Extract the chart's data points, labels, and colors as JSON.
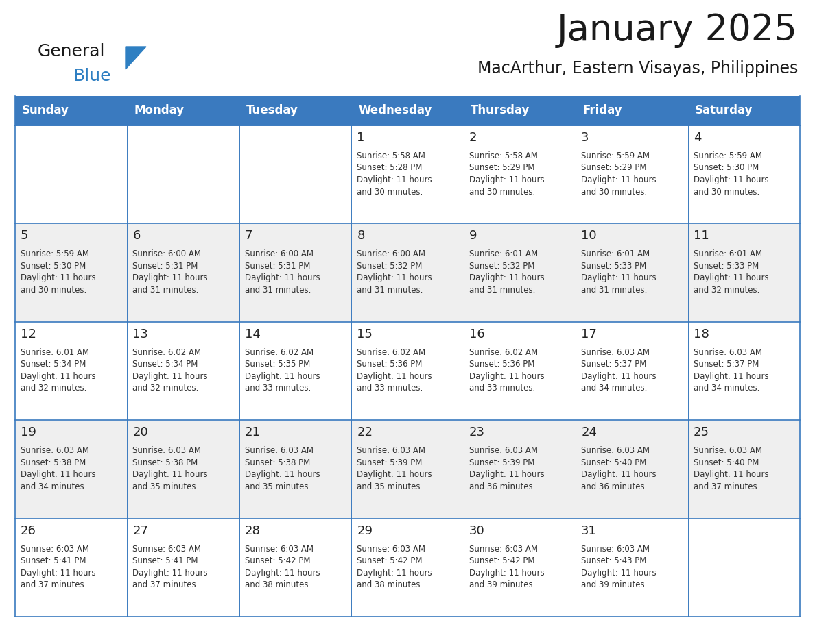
{
  "title": "January 2025",
  "subtitle": "MacArthur, Eastern Visayas, Philippines",
  "header_color": "#3a7abf",
  "header_text_color": "#ffffff",
  "odd_row_bg": "#efefef",
  "even_row_bg": "#ffffff",
  "border_color": "#3a7abf",
  "text_color": "#333333",
  "day_num_color": "#222222",
  "days_of_week": [
    "Sunday",
    "Monday",
    "Tuesday",
    "Wednesday",
    "Thursday",
    "Friday",
    "Saturday"
  ],
  "calendar_data": [
    [
      {
        "day": "",
        "info": ""
      },
      {
        "day": "",
        "info": ""
      },
      {
        "day": "",
        "info": ""
      },
      {
        "day": "1",
        "info": "Sunrise: 5:58 AM\nSunset: 5:28 PM\nDaylight: 11 hours\nand 30 minutes."
      },
      {
        "day": "2",
        "info": "Sunrise: 5:58 AM\nSunset: 5:29 PM\nDaylight: 11 hours\nand 30 minutes."
      },
      {
        "day": "3",
        "info": "Sunrise: 5:59 AM\nSunset: 5:29 PM\nDaylight: 11 hours\nand 30 minutes."
      },
      {
        "day": "4",
        "info": "Sunrise: 5:59 AM\nSunset: 5:30 PM\nDaylight: 11 hours\nand 30 minutes."
      }
    ],
    [
      {
        "day": "5",
        "info": "Sunrise: 5:59 AM\nSunset: 5:30 PM\nDaylight: 11 hours\nand 30 minutes."
      },
      {
        "day": "6",
        "info": "Sunrise: 6:00 AM\nSunset: 5:31 PM\nDaylight: 11 hours\nand 31 minutes."
      },
      {
        "day": "7",
        "info": "Sunrise: 6:00 AM\nSunset: 5:31 PM\nDaylight: 11 hours\nand 31 minutes."
      },
      {
        "day": "8",
        "info": "Sunrise: 6:00 AM\nSunset: 5:32 PM\nDaylight: 11 hours\nand 31 minutes."
      },
      {
        "day": "9",
        "info": "Sunrise: 6:01 AM\nSunset: 5:32 PM\nDaylight: 11 hours\nand 31 minutes."
      },
      {
        "day": "10",
        "info": "Sunrise: 6:01 AM\nSunset: 5:33 PM\nDaylight: 11 hours\nand 31 minutes."
      },
      {
        "day": "11",
        "info": "Sunrise: 6:01 AM\nSunset: 5:33 PM\nDaylight: 11 hours\nand 32 minutes."
      }
    ],
    [
      {
        "day": "12",
        "info": "Sunrise: 6:01 AM\nSunset: 5:34 PM\nDaylight: 11 hours\nand 32 minutes."
      },
      {
        "day": "13",
        "info": "Sunrise: 6:02 AM\nSunset: 5:34 PM\nDaylight: 11 hours\nand 32 minutes."
      },
      {
        "day": "14",
        "info": "Sunrise: 6:02 AM\nSunset: 5:35 PM\nDaylight: 11 hours\nand 33 minutes."
      },
      {
        "day": "15",
        "info": "Sunrise: 6:02 AM\nSunset: 5:36 PM\nDaylight: 11 hours\nand 33 minutes."
      },
      {
        "day": "16",
        "info": "Sunrise: 6:02 AM\nSunset: 5:36 PM\nDaylight: 11 hours\nand 33 minutes."
      },
      {
        "day": "17",
        "info": "Sunrise: 6:03 AM\nSunset: 5:37 PM\nDaylight: 11 hours\nand 34 minutes."
      },
      {
        "day": "18",
        "info": "Sunrise: 6:03 AM\nSunset: 5:37 PM\nDaylight: 11 hours\nand 34 minutes."
      }
    ],
    [
      {
        "day": "19",
        "info": "Sunrise: 6:03 AM\nSunset: 5:38 PM\nDaylight: 11 hours\nand 34 minutes."
      },
      {
        "day": "20",
        "info": "Sunrise: 6:03 AM\nSunset: 5:38 PM\nDaylight: 11 hours\nand 35 minutes."
      },
      {
        "day": "21",
        "info": "Sunrise: 6:03 AM\nSunset: 5:38 PM\nDaylight: 11 hours\nand 35 minutes."
      },
      {
        "day": "22",
        "info": "Sunrise: 6:03 AM\nSunset: 5:39 PM\nDaylight: 11 hours\nand 35 minutes."
      },
      {
        "day": "23",
        "info": "Sunrise: 6:03 AM\nSunset: 5:39 PM\nDaylight: 11 hours\nand 36 minutes."
      },
      {
        "day": "24",
        "info": "Sunrise: 6:03 AM\nSunset: 5:40 PM\nDaylight: 11 hours\nand 36 minutes."
      },
      {
        "day": "25",
        "info": "Sunrise: 6:03 AM\nSunset: 5:40 PM\nDaylight: 11 hours\nand 37 minutes."
      }
    ],
    [
      {
        "day": "26",
        "info": "Sunrise: 6:03 AM\nSunset: 5:41 PM\nDaylight: 11 hours\nand 37 minutes."
      },
      {
        "day": "27",
        "info": "Sunrise: 6:03 AM\nSunset: 5:41 PM\nDaylight: 11 hours\nand 37 minutes."
      },
      {
        "day": "28",
        "info": "Sunrise: 6:03 AM\nSunset: 5:42 PM\nDaylight: 11 hours\nand 38 minutes."
      },
      {
        "day": "29",
        "info": "Sunrise: 6:03 AM\nSunset: 5:42 PM\nDaylight: 11 hours\nand 38 minutes."
      },
      {
        "day": "30",
        "info": "Sunrise: 6:03 AM\nSunset: 5:42 PM\nDaylight: 11 hours\nand 39 minutes."
      },
      {
        "day": "31",
        "info": "Sunrise: 6:03 AM\nSunset: 5:43 PM\nDaylight: 11 hours\nand 39 minutes."
      },
      {
        "day": "",
        "info": ""
      }
    ]
  ],
  "logo_general_color": "#1a1a1a",
  "logo_blue_color": "#2e7fc2",
  "logo_triangle_color": "#2e7fc2",
  "title_fontsize": 38,
  "subtitle_fontsize": 17,
  "header_fontsize": 12,
  "day_num_fontsize": 13,
  "info_fontsize": 8.5
}
